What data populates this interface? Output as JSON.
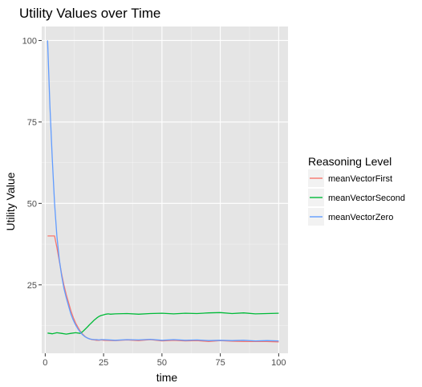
{
  "chart_data": {
    "type": "line",
    "title": "Utility Values over Time",
    "xlabel": "time",
    "ylabel": "Utility Value",
    "xlim": [
      -1.5,
      104
    ],
    "ylim": [
      4.0,
      104.3
    ],
    "x_ticks": [
      0,
      25,
      50,
      75,
      100
    ],
    "y_ticks": [
      25,
      50,
      75,
      100
    ],
    "x_tick_labels": [
      "0",
      "25",
      "50",
      "75",
      "100"
    ],
    "y_tick_labels": [
      "25",
      "50",
      "75",
      "100"
    ],
    "grid": true,
    "legend": {
      "title": "Reasoning Level",
      "placement": "right",
      "entries": [
        "meanVectorFirst",
        "meanVectorSecond",
        "meanVectorZero"
      ]
    },
    "series": [
      {
        "name": "meanVectorFirst",
        "color": "#F8766D",
        "x": [
          1,
          2,
          3,
          4,
          5,
          6,
          7,
          8,
          9,
          10,
          11,
          12,
          13,
          14,
          15,
          16,
          17,
          18,
          19,
          20,
          21,
          22,
          23,
          24,
          25,
          30,
          35,
          40,
          45,
          50,
          55,
          60,
          65,
          70,
          75,
          80,
          85,
          90,
          95,
          100
        ],
        "values": [
          40,
          40,
          40,
          40,
          36.5,
          32.5,
          28.5,
          25,
          22,
          19.5,
          17,
          15,
          13.3,
          12,
          10.8,
          9.9,
          9.2,
          8.7,
          8.4,
          8.2,
          8.1,
          8.0,
          8.0,
          8.1,
          8.0,
          7.9,
          8.1,
          7.9,
          8.2,
          7.8,
          8.0,
          7.8,
          7.9,
          7.6,
          7.9,
          7.7,
          7.6,
          7.6,
          7.6,
          7.5
        ]
      },
      {
        "name": "meanVectorSecond",
        "color": "#00BA38",
        "x": [
          1,
          3,
          5,
          7,
          9,
          11,
          13,
          15,
          16,
          17,
          18,
          19,
          20,
          21,
          22,
          23,
          24,
          25,
          26,
          27,
          28,
          30,
          35,
          40,
          45,
          50,
          55,
          60,
          65,
          70,
          75,
          80,
          85,
          90,
          95,
          100
        ],
        "values": [
          10.2,
          10.0,
          10.3,
          10.1,
          9.9,
          10.1,
          10.3,
          10.1,
          10.6,
          11.3,
          12.0,
          12.8,
          13.5,
          14.2,
          14.8,
          15.3,
          15.6,
          15.8,
          16.0,
          16.1,
          16.0,
          16.1,
          16.2,
          16.0,
          16.2,
          16.3,
          16.1,
          16.3,
          16.2,
          16.4,
          16.5,
          16.2,
          16.4,
          16.1,
          16.2,
          16.3
        ]
      },
      {
        "name": "meanVectorZero",
        "color": "#619CFF",
        "x": [
          1,
          2,
          3,
          4,
          5,
          6,
          7,
          8,
          9,
          10,
          11,
          12,
          13,
          14,
          15,
          16,
          17,
          18,
          19,
          20,
          21,
          22,
          23,
          24,
          25,
          30,
          35,
          40,
          45,
          50,
          55,
          60,
          65,
          70,
          75,
          80,
          85,
          90,
          95,
          100
        ],
        "values": [
          100,
          80,
          64,
          50,
          40,
          33,
          28,
          24,
          21,
          18.5,
          16,
          14.2,
          12.7,
          11.5,
          10.5,
          9.7,
          9.1,
          8.7,
          8.4,
          8.3,
          8.2,
          8.2,
          8.1,
          8.2,
          8.2,
          8.0,
          8.2,
          8.1,
          8.3,
          8.0,
          8.2,
          8.0,
          8.1,
          7.9,
          8.0,
          7.9,
          8.0,
          7.8,
          7.9,
          7.8
        ]
      }
    ]
  },
  "colors": {
    "panel_background": "#E5E5E5",
    "grid_major": "#FFFFFF",
    "tick_label": "#4D4D4D",
    "legend_key_background": "#F2F2F2"
  }
}
